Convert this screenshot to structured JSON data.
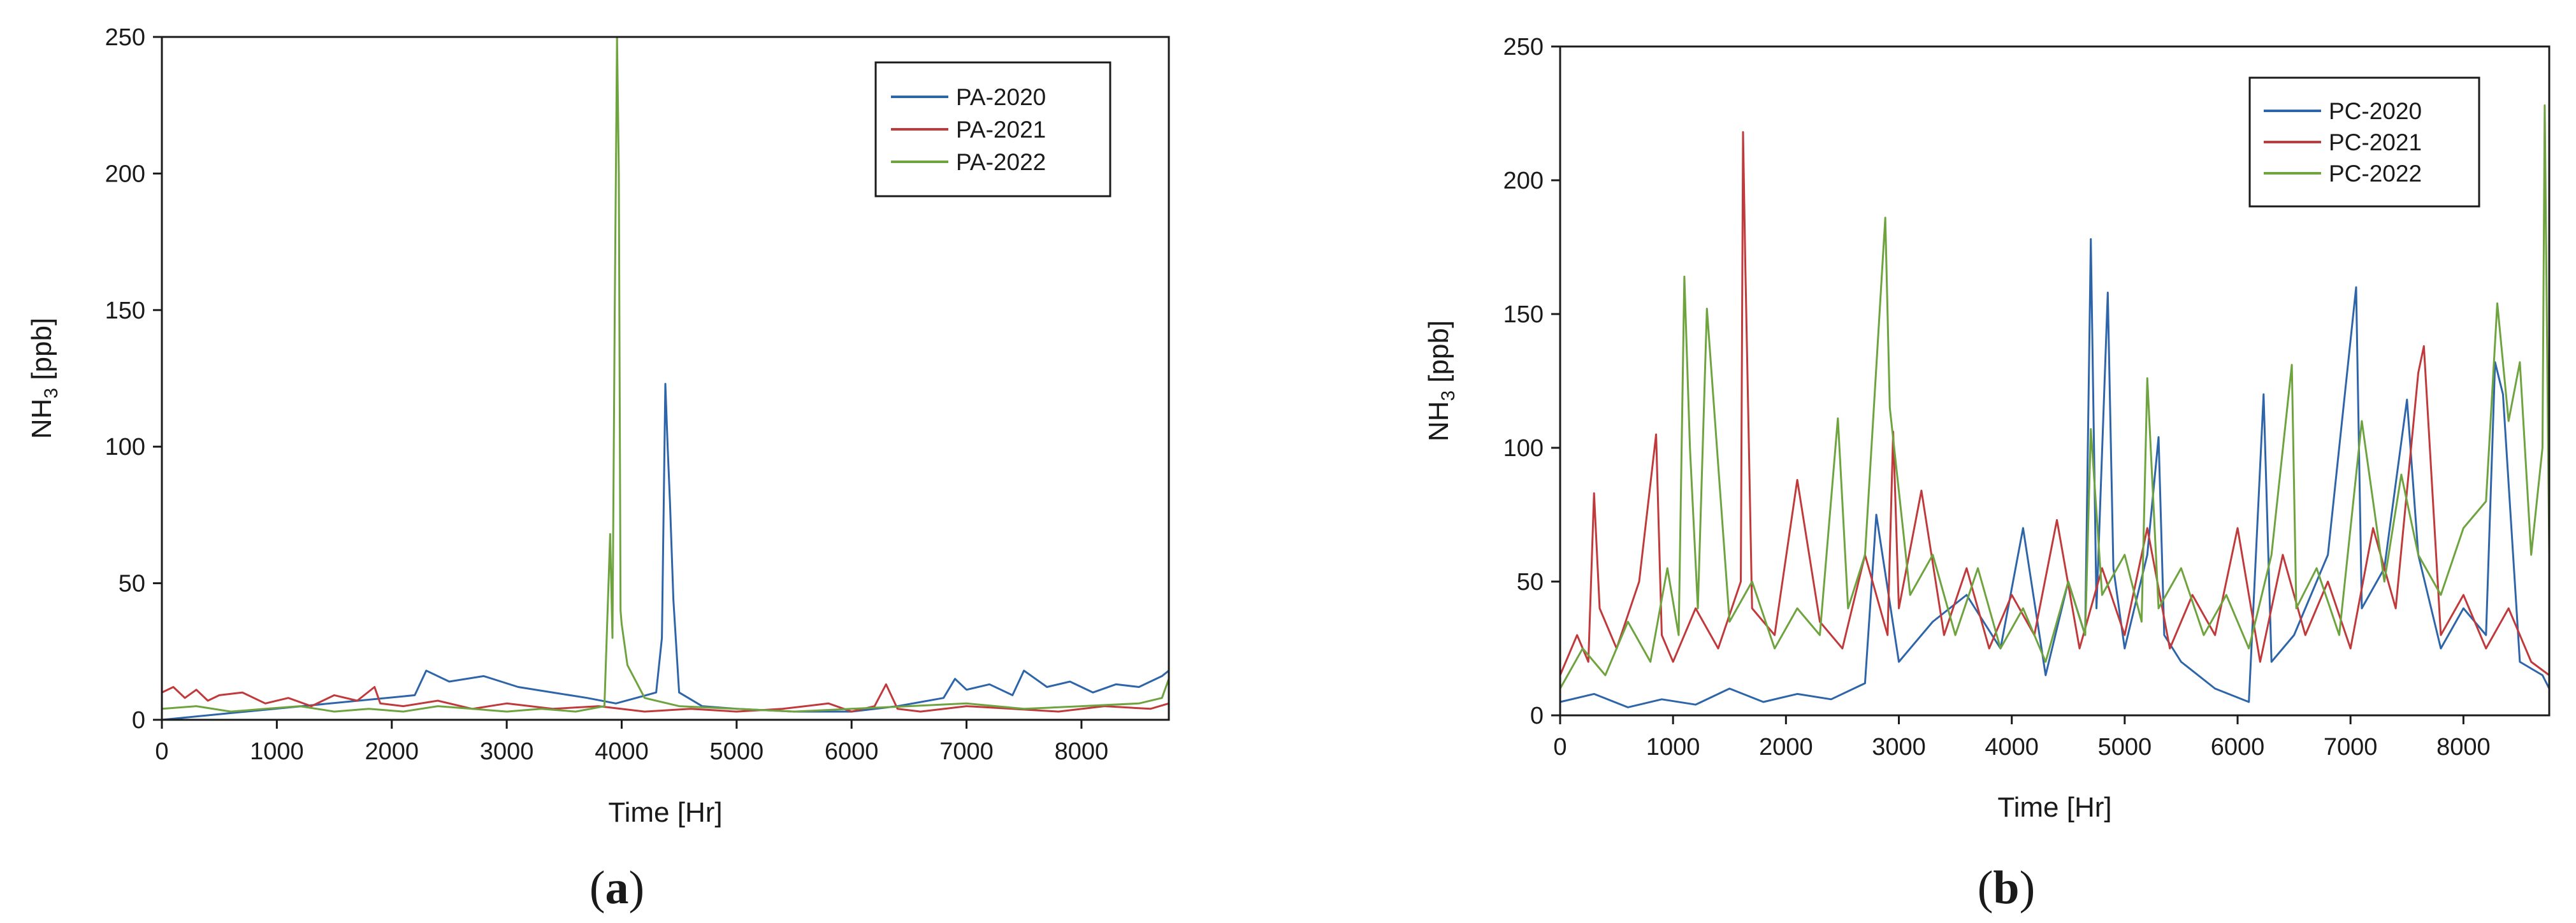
{
  "chart_data": [
    {
      "type": "line",
      "panel_label": {
        "open": "(",
        "letter": "a",
        "close": ")"
      },
      "xlabel": "Time [Hr]",
      "ylabel_main": "NH",
      "ylabel_sub": "3",
      "ylabel_tail": " [ppb]",
      "xlim": [
        0,
        8760
      ],
      "ylim": [
        0,
        250
      ],
      "x_ticks": [
        0,
        1000,
        2000,
        3000,
        4000,
        5000,
        6000,
        7000,
        8000
      ],
      "y_ticks": [
        0,
        50,
        100,
        150,
        200,
        250
      ],
      "legend_position": "top-right",
      "series": [
        {
          "name": "PA-2020",
          "color": "#2e64a8",
          "x": [
            0,
            2200,
            2300,
            2500,
            2800,
            3100,
            3400,
            3700,
            3950,
            4300,
            4350,
            4380,
            4400,
            4420,
            4450,
            4500,
            4700,
            5000,
            5500,
            6000,
            6400,
            6800,
            6900,
            7000,
            7200,
            7400,
            7500,
            7700,
            7900,
            8100,
            8300,
            8500,
            8700,
            8760
          ],
          "y": [
            0,
            9,
            18,
            14,
            16,
            12,
            10,
            8,
            6,
            10,
            30,
            123,
            100,
            80,
            44,
            10,
            5,
            4,
            3,
            3,
            5,
            8,
            15,
            11,
            13,
            9,
            18,
            12,
            14,
            10,
            13,
            12,
            16,
            18
          ]
        },
        {
          "name": "PA-2021",
          "color": "#c0393b",
          "x": [
            0,
            100,
            200,
            300,
            400,
            500,
            700,
            900,
            1100,
            1300,
            1500,
            1700,
            1850,
            1900,
            2100,
            2400,
            2700,
            3000,
            3400,
            3800,
            4200,
            4600,
            5000,
            5400,
            5800,
            6000,
            6200,
            6300,
            6400,
            6600,
            7000,
            7400,
            7800,
            8200,
            8600,
            8760
          ],
          "y": [
            10,
            12,
            8,
            11,
            7,
            9,
            10,
            6,
            8,
            5,
            9,
            7,
            12,
            6,
            5,
            7,
            4,
            6,
            4,
            5,
            3,
            4,
            3,
            4,
            6,
            3,
            5,
            13,
            4,
            3,
            5,
            4,
            3,
            5,
            4,
            6
          ]
        },
        {
          "name": "PA-2022",
          "color": "#6ea33f",
          "x": [
            0,
            300,
            600,
            900,
            1200,
            1500,
            1800,
            2100,
            2400,
            2700,
            3000,
            3300,
            3600,
            3850,
            3900,
            3920,
            3940,
            3960,
            3975,
            3990,
            4000,
            4050,
            4200,
            4500,
            5000,
            5500,
            6000,
            6500,
            7000,
            7500,
            8000,
            8500,
            8700,
            8760
          ],
          "y": [
            4,
            5,
            3,
            4,
            5,
            3,
            4,
            3,
            5,
            4,
            3,
            4,
            3,
            5,
            68,
            30,
            150,
            250,
            200,
            40,
            35,
            20,
            8,
            5,
            4,
            3,
            4,
            5,
            6,
            4,
            5,
            6,
            8,
            15
          ]
        }
      ]
    },
    {
      "type": "line",
      "panel_label": {
        "open": "(",
        "letter": "b",
        "close": ")"
      },
      "xlabel": "Time [Hr]",
      "ylabel_main": "NH",
      "ylabel_sub": "3",
      "ylabel_tail": " [ppb]",
      "xlim": [
        0,
        8760
      ],
      "ylim": [
        0,
        250
      ],
      "x_ticks": [
        0,
        1000,
        2000,
        3000,
        4000,
        5000,
        6000,
        7000,
        8000
      ],
      "y_ticks": [
        0,
        50,
        100,
        150,
        200,
        250
      ],
      "legend_position": "top-right",
      "series": [
        {
          "name": "PC-2020",
          "color": "#2e64a8",
          "x": [
            0,
            300,
            600,
            900,
            1200,
            1500,
            1800,
            2100,
            2400,
            2700,
            2800,
            3000,
            3300,
            3600,
            3900,
            4100,
            4300,
            4500,
            4650,
            4700,
            4750,
            4850,
            4900,
            5000,
            5200,
            5300,
            5350,
            5500,
            5800,
            6100,
            6230,
            6300,
            6500,
            6800,
            7050,
            7100,
            7300,
            7500,
            7600,
            7800,
            8000,
            8200,
            8280,
            8350,
            8500,
            8700,
            8760
          ],
          "y": [
            5,
            8,
            3,
            6,
            4,
            10,
            5,
            8,
            6,
            12,
            75,
            20,
            35,
            45,
            25,
            70,
            15,
            50,
            30,
            178,
            40,
            158,
            55,
            25,
            60,
            104,
            30,
            20,
            10,
            5,
            120,
            20,
            30,
            60,
            160,
            40,
            55,
            118,
            60,
            25,
            40,
            30,
            132,
            120,
            20,
            15,
            10
          ]
        },
        {
          "name": "PC-2021",
          "color": "#c0393b",
          "x": [
            0,
            150,
            250,
            300,
            350,
            500,
            700,
            850,
            900,
            1000,
            1200,
            1400,
            1600,
            1620,
            1640,
            1700,
            1900,
            2100,
            2300,
            2500,
            2700,
            2900,
            2950,
            3000,
            3200,
            3400,
            3600,
            3800,
            4000,
            4200,
            4400,
            4600,
            4800,
            5000,
            5200,
            5400,
            5600,
            5800,
            6000,
            6200,
            6400,
            6600,
            6800,
            7000,
            7200,
            7400,
            7600,
            7650,
            7800,
            8000,
            8200,
            8400,
            8600,
            8760
          ],
          "y": [
            15,
            30,
            20,
            83,
            40,
            25,
            50,
            105,
            30,
            20,
            40,
            25,
            50,
            218,
            168,
            40,
            30,
            88,
            35,
            25,
            60,
            30,
            106,
            40,
            84,
            30,
            55,
            25,
            45,
            30,
            73,
            25,
            55,
            30,
            70,
            25,
            45,
            30,
            70,
            20,
            60,
            30,
            50,
            25,
            70,
            40,
            128,
            138,
            30,
            45,
            25,
            40,
            20,
            15
          ]
        },
        {
          "name": "PC-2022",
          "color": "#6ea33f",
          "x": [
            0,
            200,
            400,
            600,
            800,
            950,
            1050,
            1100,
            1150,
            1220,
            1300,
            1500,
            1700,
            1900,
            2100,
            2300,
            2460,
            2550,
            2700,
            2880,
            2920,
            3100,
            3300,
            3500,
            3700,
            3900,
            4100,
            4300,
            4500,
            4650,
            4700,
            4800,
            5000,
            5150,
            5200,
            5300,
            5500,
            5700,
            5900,
            6100,
            6300,
            6480,
            6520,
            6700,
            6900,
            7100,
            7300,
            7450,
            7600,
            7800,
            8000,
            8200,
            8300,
            8400,
            8500,
            8600,
            8700,
            8720,
            8760
          ],
          "y": [
            10,
            25,
            15,
            35,
            20,
            55,
            30,
            164,
            100,
            40,
            152,
            35,
            50,
            25,
            40,
            30,
            111,
            40,
            60,
            186,
            115,
            45,
            60,
            30,
            55,
            25,
            40,
            20,
            50,
            30,
            107,
            45,
            60,
            35,
            126,
            40,
            55,
            30,
            45,
            25,
            60,
            131,
            40,
            55,
            30,
            110,
            50,
            90,
            60,
            45,
            70,
            80,
            154,
            110,
            132,
            60,
            100,
            228,
            60
          ]
        }
      ]
    }
  ]
}
